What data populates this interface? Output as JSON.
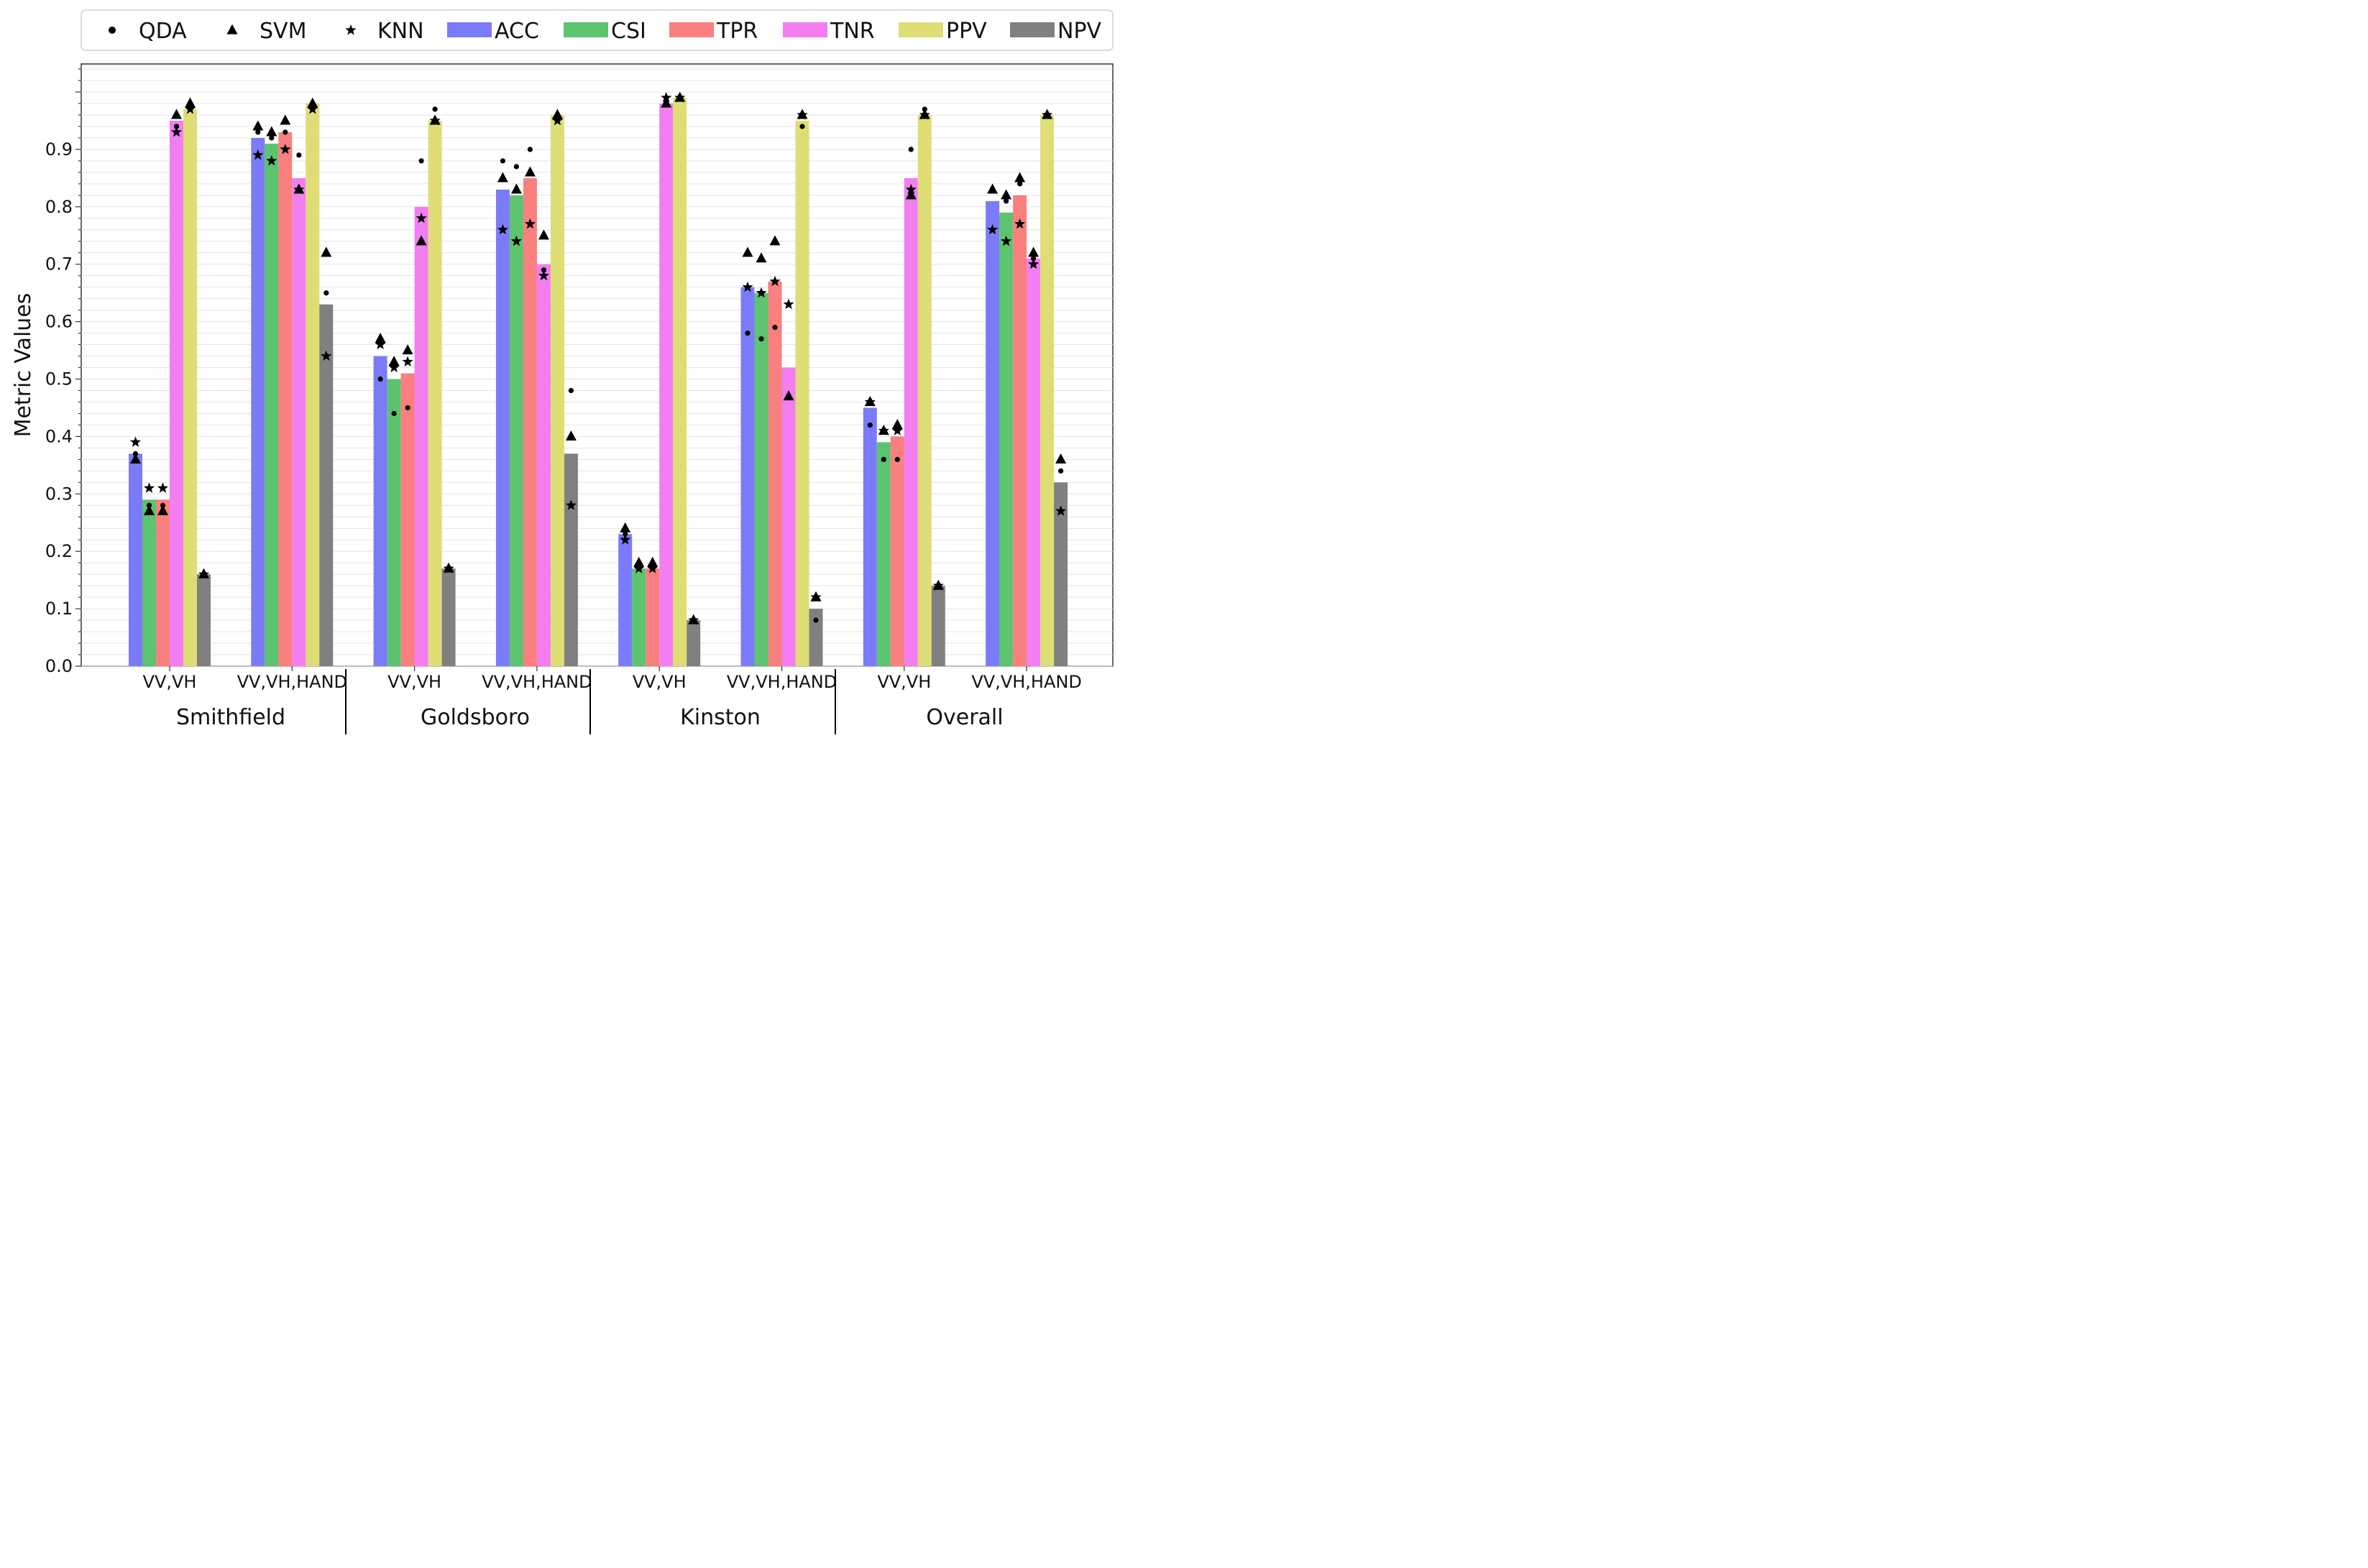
{
  "chart_data": {
    "type": "bar",
    "title": "",
    "ylabel": "Metric Values",
    "xlabel": "",
    "ylim": [
      0,
      1.05
    ],
    "y_ticks": [
      "0.0",
      "0.1",
      "0.2",
      "0.3",
      "0.4",
      "0.5",
      "0.6",
      "0.7",
      "0.8",
      "0.9"
    ],
    "grid": "horizontal minor",
    "legend_position": "top",
    "regions": [
      "Smithfield",
      "Goldsboro",
      "Kinston",
      "Overall"
    ],
    "categories": [
      "VV,VH",
      "VV,VH,HAND",
      "VV,VH",
      "VV,VH,HAND",
      "VV,VH",
      "VV,VH,HAND",
      "VV,VH",
      "VV,VH,HAND"
    ],
    "series": [
      {
        "name": "ACC",
        "color": "#7b7bfa",
        "values": [
          0.37,
          0.92,
          0.54,
          0.83,
          0.23,
          0.66,
          0.45,
          0.81
        ]
      },
      {
        "name": "CSI",
        "color": "#5cc36e",
        "values": [
          0.29,
          0.91,
          0.5,
          0.82,
          0.17,
          0.65,
          0.39,
          0.79
        ]
      },
      {
        "name": "TPR",
        "color": "#fa7f7f",
        "values": [
          0.29,
          0.93,
          0.51,
          0.85,
          0.17,
          0.67,
          0.4,
          0.82
        ]
      },
      {
        "name": "TNR",
        "color": "#f27ef0",
        "values": [
          0.95,
          0.85,
          0.8,
          0.7,
          0.98,
          0.52,
          0.85,
          0.71
        ]
      },
      {
        "name": "PPV",
        "color": "#dedd76",
        "values": [
          0.97,
          0.98,
          0.95,
          0.96,
          0.99,
          0.95,
          0.96,
          0.96
        ]
      },
      {
        "name": "NPV",
        "color": "#808080",
        "values": [
          0.16,
          0.63,
          0.17,
          0.37,
          0.08,
          0.1,
          0.14,
          0.32
        ]
      }
    ],
    "markers": [
      {
        "name": "QDA",
        "symbol": "circle",
        "values": {
          "ACC": [
            0.37,
            0.93,
            0.5,
            0.88,
            0.23,
            0.58,
            0.42,
            0.83
          ],
          "CSI": [
            0.28,
            0.92,
            0.44,
            0.87,
            0.17,
            0.57,
            0.36,
            0.81
          ],
          "TPR": [
            0.28,
            0.93,
            0.45,
            0.9,
            0.17,
            0.59,
            0.36,
            0.84
          ],
          "TNR": [
            0.94,
            0.89,
            0.88,
            0.69,
            0.98,
            0.47,
            0.9,
            0.71
          ],
          "PPV": [
            0.97,
            0.98,
            0.97,
            0.96,
            0.99,
            0.94,
            0.97,
            0.96
          ],
          "NPV": [
            0.16,
            0.65,
            0.17,
            0.48,
            0.08,
            0.08,
            0.14,
            0.34
          ]
        }
      },
      {
        "name": "SVM",
        "symbol": "triangle",
        "values": {
          "ACC": [
            0.36,
            0.94,
            0.57,
            0.85,
            0.24,
            0.72,
            0.46,
            0.83
          ],
          "CSI": [
            0.27,
            0.93,
            0.53,
            0.83,
            0.18,
            0.71,
            0.41,
            0.82
          ],
          "TPR": [
            0.27,
            0.95,
            0.55,
            0.86,
            0.18,
            0.74,
            0.42,
            0.85
          ],
          "TNR": [
            0.96,
            0.83,
            0.74,
            0.75,
            0.98,
            0.47,
            0.82,
            0.72
          ],
          "PPV": [
            0.98,
            0.98,
            0.95,
            0.96,
            0.99,
            0.96,
            0.96,
            0.96
          ],
          "NPV": [
            0.16,
            0.72,
            0.17,
            0.4,
            0.08,
            0.12,
            0.14,
            0.36
          ]
        }
      },
      {
        "name": "KNN",
        "symbol": "star",
        "values": {
          "ACC": [
            0.39,
            0.89,
            0.56,
            0.76,
            0.22,
            0.66,
            0.46,
            0.76
          ],
          "CSI": [
            0.31,
            0.88,
            0.52,
            0.74,
            0.17,
            0.65,
            0.41,
            0.74
          ],
          "TPR": [
            0.31,
            0.9,
            0.53,
            0.77,
            0.17,
            0.67,
            0.41,
            0.77
          ],
          "TNR": [
            0.93,
            0.83,
            0.78,
            0.68,
            0.99,
            0.63,
            0.83,
            0.7
          ],
          "PPV": [
            0.97,
            0.97,
            0.95,
            0.95,
            0.99,
            0.96,
            0.96,
            0.96
          ],
          "NPV": [
            0.16,
            0.54,
            0.17,
            0.28,
            0.08,
            0.12,
            0.14,
            0.27
          ]
        }
      }
    ]
  }
}
